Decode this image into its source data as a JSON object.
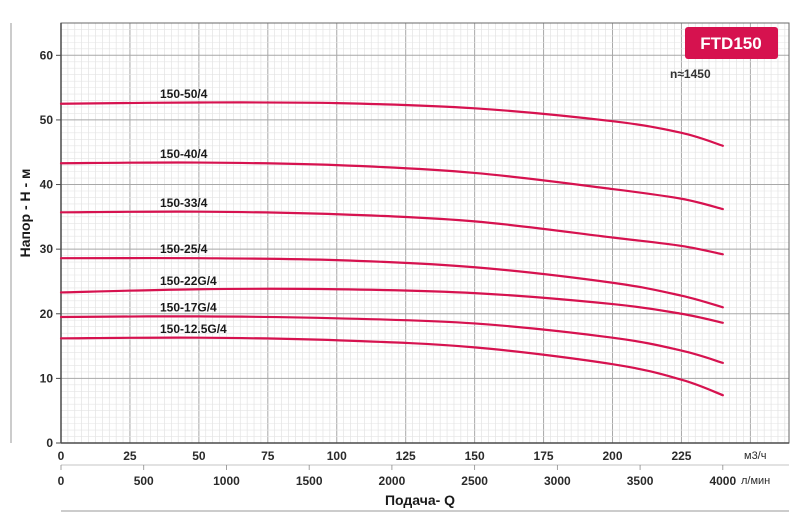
{
  "chart_data": {
    "type": "line",
    "title": "FTD150",
    "annotation": "n≈1450",
    "xlabel": "Подача- Q",
    "ylabel": "Напор - Н - м",
    "x_unit_primary": "м3/ч",
    "x_unit_secondary": "л/мин",
    "xlim": [
      0,
      264
    ],
    "ylim": [
      0,
      65
    ],
    "x_ticks_primary": [
      "0",
      "25",
      "50",
      "75",
      "100",
      "125",
      "150",
      "175",
      "200",
      "225"
    ],
    "x_ticks_secondary": [
      "0",
      "500",
      "1000",
      "1500",
      "2000",
      "2500",
      "3000",
      "3500",
      "4000"
    ],
    "y_ticks": [
      "0",
      "10",
      "20",
      "30",
      "40",
      "50",
      "60"
    ],
    "grid": true,
    "line_color": "#d6124f",
    "badge_color": "#d6124f",
    "series": [
      {
        "name": "150-50/4",
        "x": [
          0,
          50,
          100,
          150,
          200,
          225,
          240
        ],
        "y": [
          52.5,
          52.7,
          52.6,
          51.8,
          49.8,
          48.0,
          46.0
        ]
      },
      {
        "name": "150-40/4",
        "x": [
          0,
          50,
          100,
          150,
          200,
          225,
          240
        ],
        "y": [
          43.3,
          43.4,
          43.0,
          41.8,
          39.3,
          37.8,
          36.2
        ]
      },
      {
        "name": "150-33/4",
        "x": [
          0,
          50,
          100,
          150,
          200,
          225,
          240
        ],
        "y": [
          35.7,
          35.8,
          35.4,
          34.3,
          31.8,
          30.5,
          29.2
        ]
      },
      {
        "name": "150-25/4",
        "x": [
          0,
          50,
          100,
          150,
          200,
          225,
          240
        ],
        "y": [
          28.6,
          28.6,
          28.3,
          27.2,
          24.8,
          22.8,
          21.0
        ]
      },
      {
        "name": "150-22G/4",
        "x": [
          0,
          50,
          100,
          150,
          200,
          225,
          240
        ],
        "y": [
          23.3,
          23.8,
          23.8,
          23.2,
          21.5,
          20.0,
          18.6
        ]
      },
      {
        "name": "150-17G/4",
        "x": [
          0,
          50,
          100,
          150,
          200,
          225,
          240
        ],
        "y": [
          19.5,
          19.6,
          19.3,
          18.5,
          16.3,
          14.3,
          12.4
        ]
      },
      {
        "name": "150-12.5G/4",
        "x": [
          0,
          50,
          100,
          150,
          200,
          225,
          240
        ],
        "y": [
          16.2,
          16.3,
          15.9,
          14.8,
          12.2,
          9.8,
          7.4
        ]
      }
    ]
  }
}
